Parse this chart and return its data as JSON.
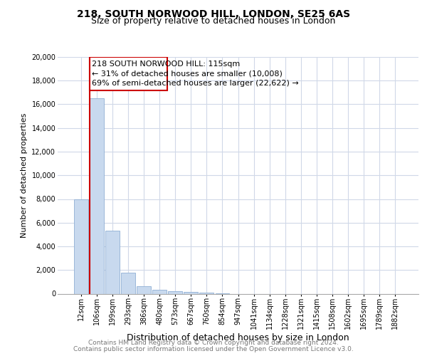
{
  "title1": "218, SOUTH NORWOOD HILL, LONDON, SE25 6AS",
  "title2": "Size of property relative to detached houses in London",
  "xlabel": "Distribution of detached houses by size in London",
  "ylabel": "Number of detached properties",
  "footer1": "Contains HM Land Registry data © Crown copyright and database right 2024.",
  "footer2": "Contains public sector information licensed under the Open Government Licence v3.0.",
  "annotation_title": "218 SOUTH NORWOOD HILL: 115sqm",
  "annotation_line2": "← 31% of detached houses are smaller (10,008)",
  "annotation_line3": "69% of semi-detached houses are larger (22,622) →",
  "categories": [
    "12sqm",
    "106sqm",
    "199sqm",
    "293sqm",
    "386sqm",
    "480sqm",
    "573sqm",
    "667sqm",
    "760sqm",
    "854sqm",
    "947sqm",
    "1041sqm",
    "1134sqm",
    "1228sqm",
    "1321sqm",
    "1415sqm",
    "1508sqm",
    "1602sqm",
    "1695sqm",
    "1789sqm",
    "1882sqm"
  ],
  "values": [
    8000,
    16500,
    5300,
    1750,
    650,
    350,
    200,
    150,
    100,
    60,
    0,
    0,
    0,
    0,
    0,
    0,
    0,
    0,
    0,
    0,
    0
  ],
  "bar_color": "#c8d9ee",
  "bar_edge_color": "#8fafd4",
  "marker_line_color": "#cc0000",
  "annotation_box_edgecolor": "#cc0000",
  "annotation_box_facecolor": "#ffffff",
  "grid_color": "#d0d8e8",
  "background_color": "#ffffff",
  "ylim": [
    0,
    20000
  ],
  "yticks": [
    0,
    2000,
    4000,
    6000,
    8000,
    10000,
    12000,
    14000,
    16000,
    18000,
    20000
  ],
  "title1_fontsize": 10,
  "title2_fontsize": 9,
  "ylabel_fontsize": 8,
  "xlabel_fontsize": 9,
  "tick_fontsize": 7,
  "footer_fontsize": 6.5,
  "ann_fontsize": 8
}
